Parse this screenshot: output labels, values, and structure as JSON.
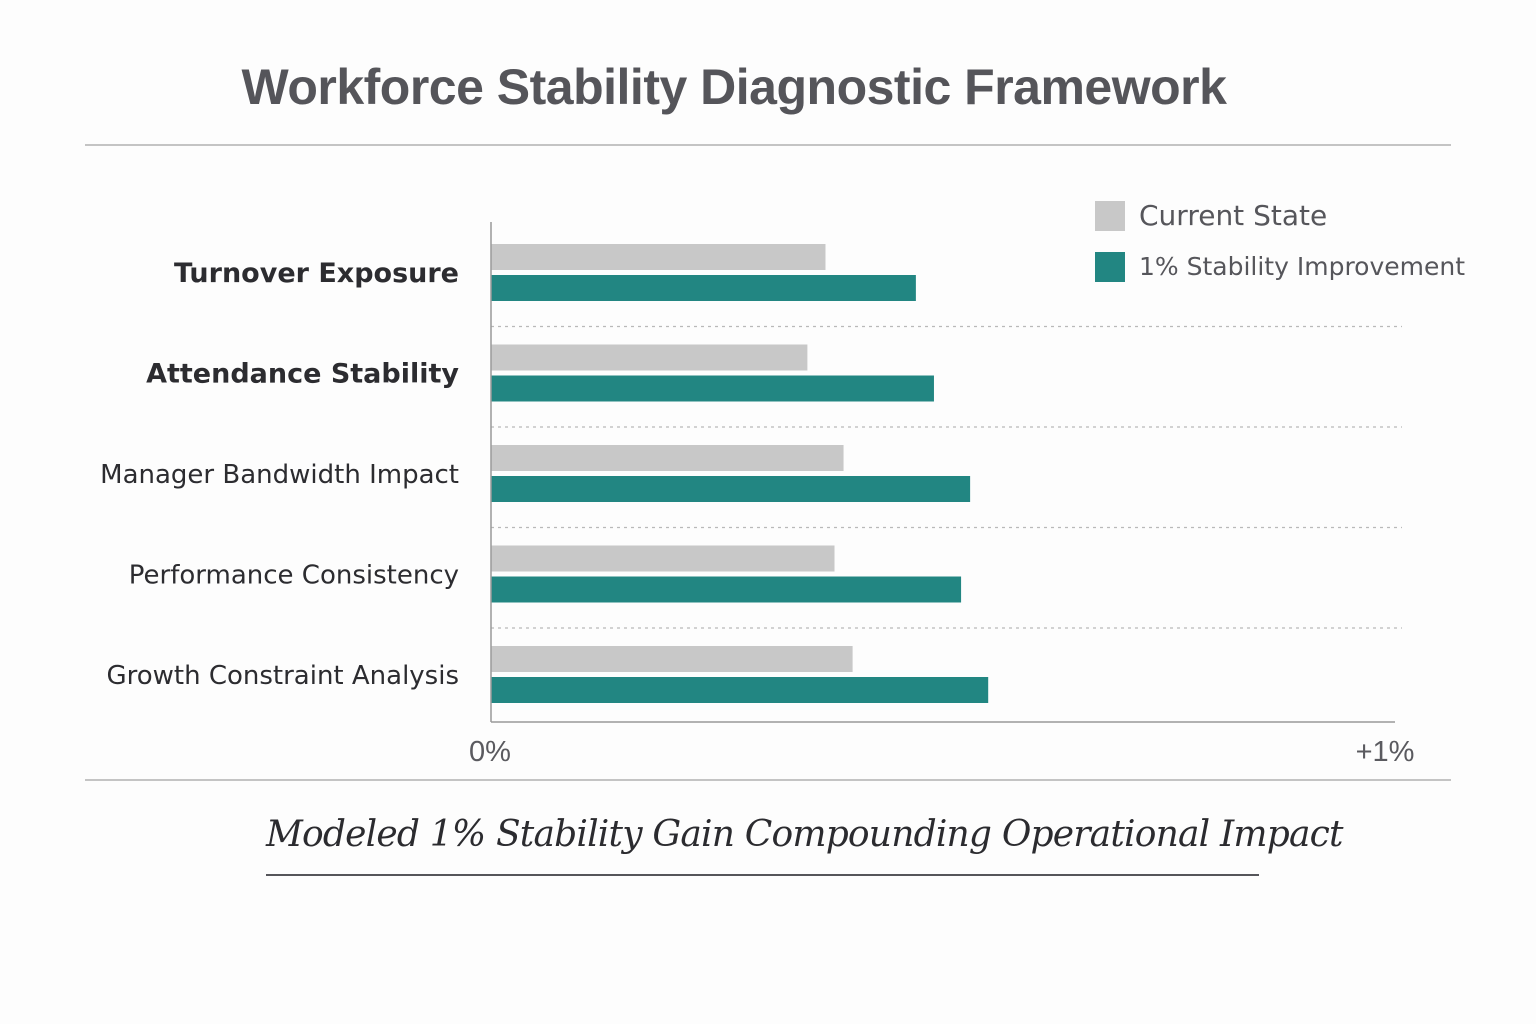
{
  "title": "Workforce Stability Diagnostic Framework",
  "caption": "Modeled 1% Stability Gain Compounding Operational Impact",
  "legend": [
    {
      "label": "Current State",
      "color": "#c8c8c8"
    },
    {
      "label": "1% Stability Improvement",
      "color": "#228682"
    }
  ],
  "chart_data": {
    "type": "bar",
    "orientation": "horizontal",
    "title": "Workforce Stability Diagnostic Framework",
    "subtitle": "Modeled 1% Stability Gain Compounding Operational Impact",
    "xlabel": "",
    "ylabel": "",
    "xlim": [
      0,
      1
    ],
    "x_tick_labels": [
      "0%",
      "+1%"
    ],
    "x_ticks": [
      0,
      1
    ],
    "grid": "horizontal dotted separators between categories",
    "legend_position": "top-right",
    "categories": [
      "Turnover Exposure",
      "Attendance Stability",
      "Manager Bandwidth Impact",
      "Performance Consistency",
      "Growth Constraint Analysis"
    ],
    "category_emphasis": [
      true,
      true,
      false,
      false,
      false
    ],
    "series": [
      {
        "name": "Current State",
        "color": "#c8c8c8",
        "values": [
          0.37,
          0.35,
          0.39,
          0.38,
          0.4
        ]
      },
      {
        "name": "1% Stability Improvement",
        "color": "#228682",
        "values": [
          0.47,
          0.49,
          0.53,
          0.52,
          0.55
        ]
      }
    ]
  }
}
